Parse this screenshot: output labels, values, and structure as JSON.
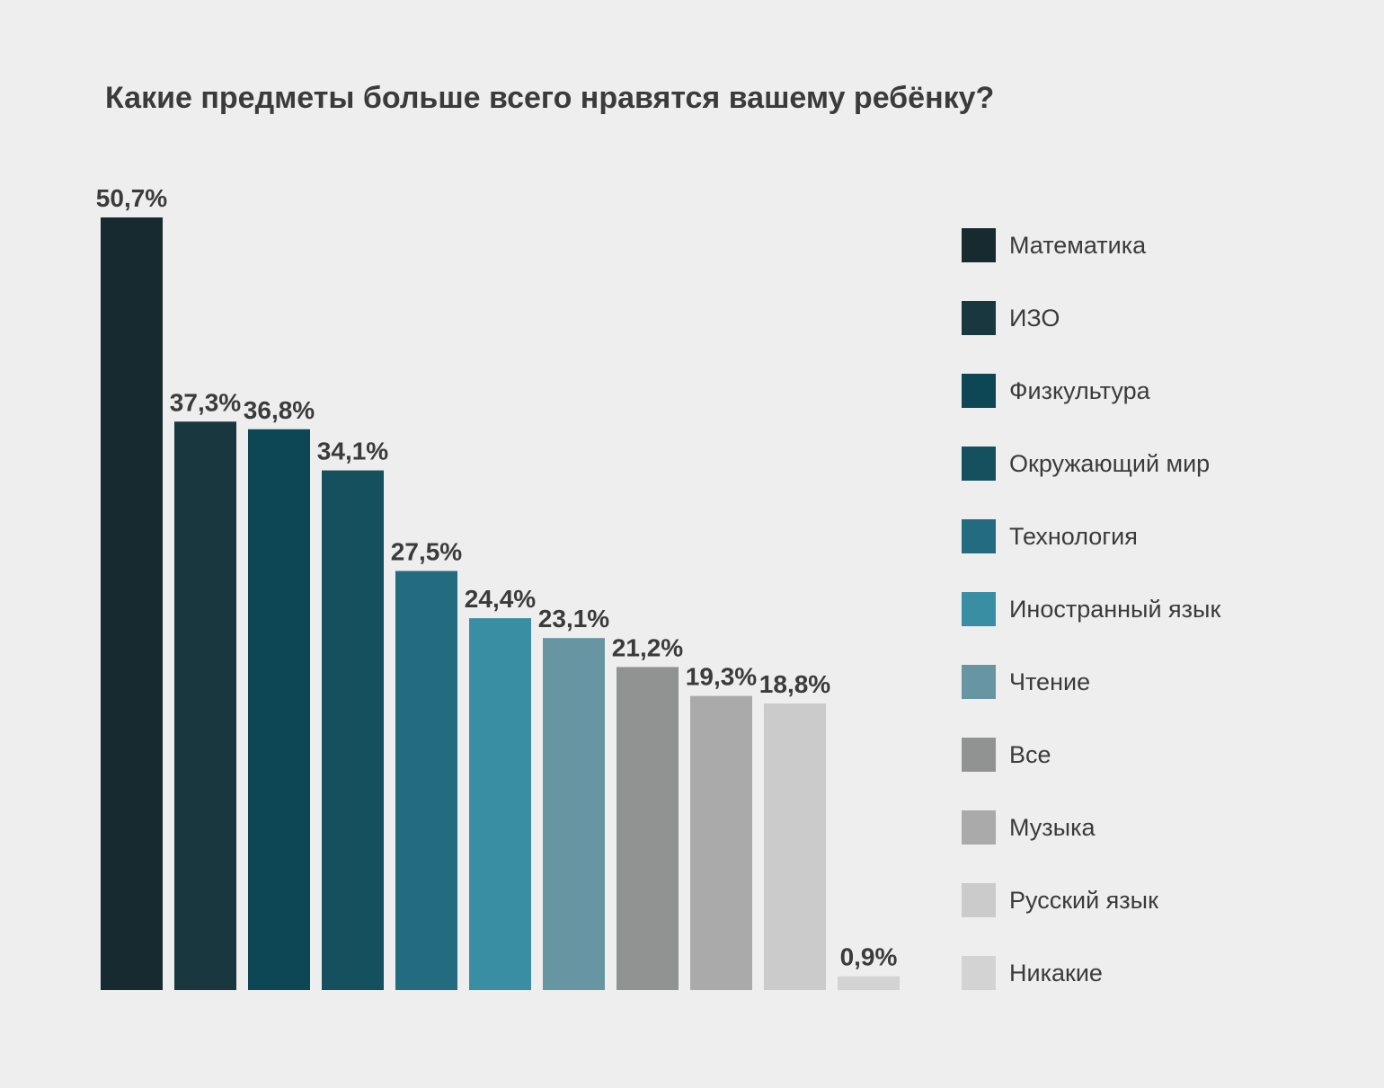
{
  "chart_data": {
    "type": "bar",
    "title": "Какие предметы больше всего нравятся вашему ребёнку?",
    "categories": [
      "Математика",
      "ИЗО",
      "Физкультура",
      "Окружающий мир",
      "Технология",
      "Иностранный язык",
      "Чтение",
      "Все",
      "Музыка",
      "Русский язык",
      "Никакие"
    ],
    "values": [
      50.7,
      37.3,
      36.8,
      34.1,
      27.5,
      24.4,
      23.1,
      21.2,
      19.3,
      18.8,
      0.9
    ],
    "value_labels": [
      "50,7%",
      "37,3%",
      "36,8%",
      "34,1%",
      "27,5%",
      "24,4%",
      "23,1%",
      "21,2%",
      "19,3%",
      "18,8%",
      "0,9%"
    ],
    "colors": [
      "#162a2f",
      "#18373e",
      "#0d4654",
      "#15505e",
      "#236c80",
      "#3a8ea3",
      "#6795a1",
      "#919392",
      "#aaaaaa",
      "#cbcbcb",
      "#d3d3d3"
    ],
    "unit": "%",
    "ylim": [
      0,
      50.7
    ],
    "grid": false,
    "xaxis_visible": false,
    "yaxis_visible": false,
    "legend_position": "right"
  }
}
